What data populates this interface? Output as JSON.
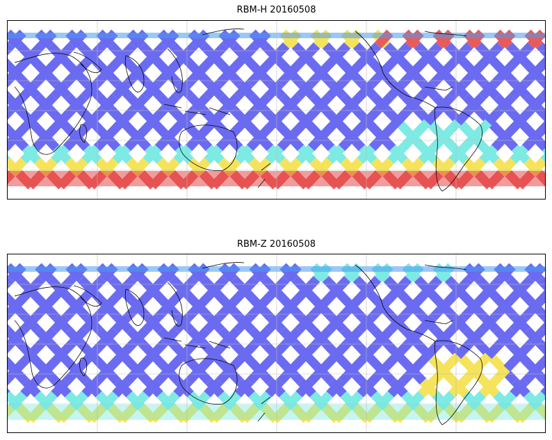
{
  "maps": [
    {
      "title": "RBM-H 20160508",
      "field": "horizontal",
      "colormap": "jet",
      "colorbar_shown": false,
      "grid": true
    },
    {
      "title": "RBM-Z 20160508",
      "field": "vertical",
      "colormap": "jet",
      "colorbar_shown": false,
      "grid": true
    }
  ],
  "colors": {
    "low": "#5b5bf0",
    "low_mid": "#4a9af0",
    "mid": "#6fe8e0",
    "mid_high": "#f4e04a",
    "high": "#e64a4a",
    "coast": "#000000",
    "grid": "#bbbbbb"
  }
}
